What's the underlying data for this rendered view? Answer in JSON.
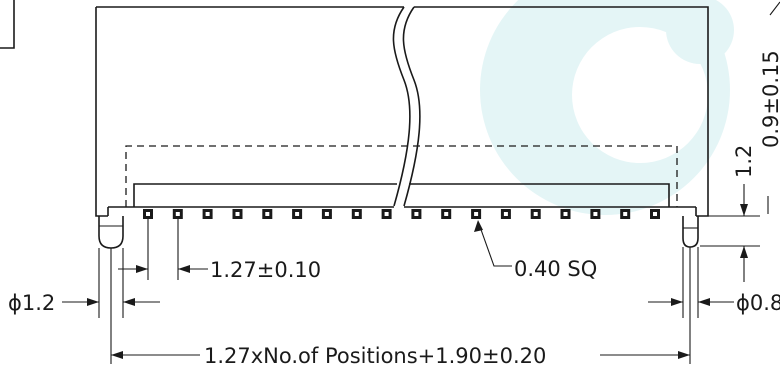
{
  "drawing": {
    "dimensions": {
      "pitch": "1.27±0.10",
      "pin_size": "0.40 SQ",
      "left_post_diameter": "ϕ1.2",
      "right_post_diameter": "ϕ0.8",
      "overall_length": "1.27xNo.of  Positions+1.90±0.20",
      "vertical_1": "1.2",
      "vertical_2": "0.9±0.15"
    },
    "pin_count": 18,
    "watermark_color": "#dff3f4",
    "line_color": "#1a1a1a"
  }
}
